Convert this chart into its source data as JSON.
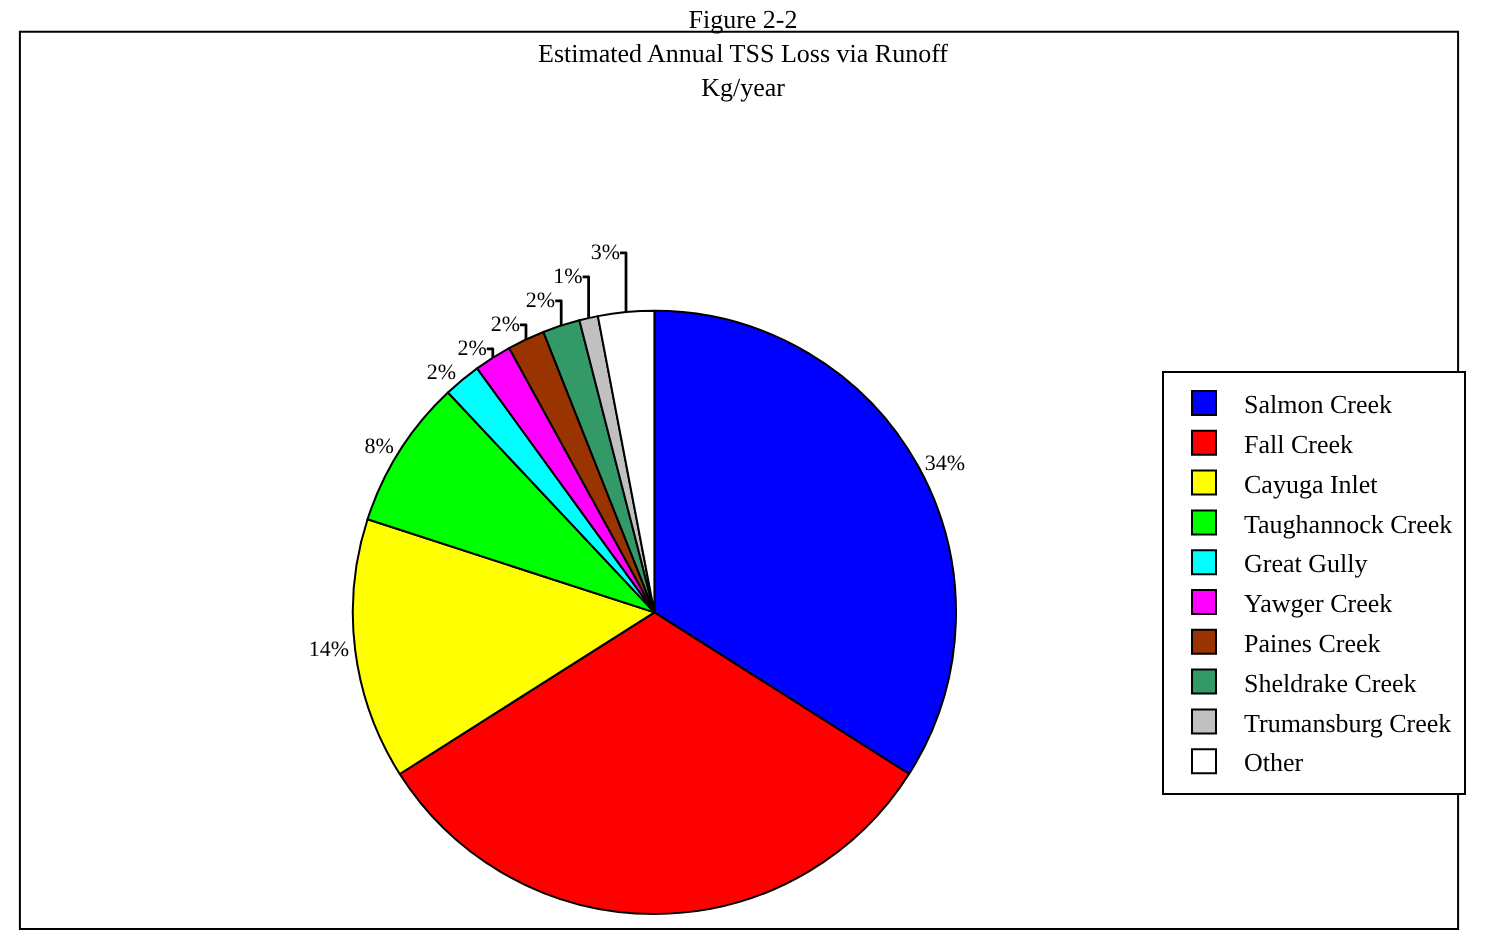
{
  "chart_data": {
    "type": "pie",
    "title": "Figure 2-2",
    "subtitle": "Estimated Annual TSS Loss via Runoff",
    "annotations": [
      "Kg/year"
    ],
    "categories": [
      "Salmon Creek",
      "Fall Creek",
      "Cayuga Inlet",
      "Taughannock Creek",
      "Great Gully",
      "Yawger Creek",
      "Paines Creek",
      "Sheldrake Creek",
      "Trumansburg Creek",
      "Other"
    ],
    "values": [
      34,
      32,
      14,
      8,
      2,
      2,
      2,
      2,
      1,
      3
    ],
    "value_labels": [
      "34%",
      null,
      "14%",
      "8%",
      "2%",
      "2%",
      "2%",
      "2%",
      "1%",
      "3%"
    ],
    "colors": [
      "#0000ff",
      "#ff0000",
      "#ffff00",
      "#00ff00",
      "#00ffff",
      "#ff00ff",
      "#993300",
      "#339966",
      "#c0c0c0",
      "#ffffff"
    ],
    "legend": "right"
  }
}
